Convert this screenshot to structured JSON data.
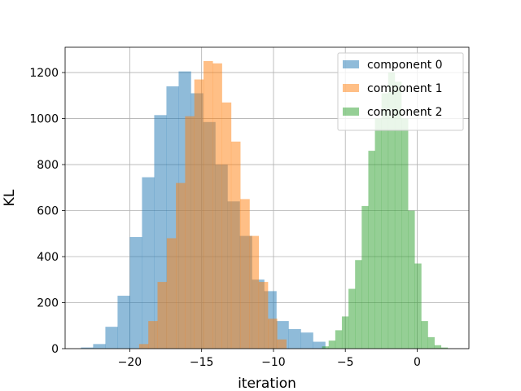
{
  "chart_data": {
    "type": "bar",
    "subtype": "histogram",
    "xlabel": "iteration",
    "ylabel": "KL",
    "xlim": [
      -24.5,
      3.6
    ],
    "ylim": [
      0,
      1310
    ],
    "xticks": [
      -20,
      -15,
      -10,
      -5,
      0
    ],
    "yticks": [
      0,
      200,
      400,
      600,
      800,
      1000,
      1200
    ],
    "grid": true,
    "legend_position": "top-right",
    "series": [
      {
        "name": "component 0",
        "color": "#1f77b4",
        "opacity": 0.5,
        "bin_width": 0.85,
        "bin_starts": [
          -23.4,
          -22.55,
          -21.7,
          -20.85,
          -20.0,
          -19.15,
          -18.3,
          -17.45,
          -16.6,
          -15.75,
          -14.9,
          -14.05,
          -13.2,
          -12.35,
          -11.5,
          -10.65,
          -9.8,
          -8.95,
          -8.1,
          -7.25
        ],
        "counts": [
          5,
          20,
          95,
          230,
          485,
          745,
          1015,
          1140,
          1205,
          1110,
          985,
          800,
          640,
          490,
          300,
          250,
          120,
          85,
          70,
          30
        ]
      },
      {
        "name": "component 1",
        "color": "#ff7f0e",
        "opacity": 0.5,
        "bin_width": 0.64,
        "bin_starts": [
          -19.35,
          -18.71,
          -18.07,
          -17.43,
          -16.79,
          -16.15,
          -15.51,
          -14.87,
          -14.23,
          -13.59,
          -12.95,
          -12.31,
          -11.67,
          -11.03,
          -10.39,
          -9.75
        ],
        "counts": [
          20,
          120,
          290,
          480,
          720,
          1010,
          1170,
          1250,
          1240,
          1070,
          900,
          650,
          490,
          290,
          130,
          40
        ]
      },
      {
        "name": "component 2",
        "color": "#2ca02c",
        "opacity": 0.5,
        "bin_width": 0.46,
        "bin_starts": [
          -6.62,
          -6.16,
          -5.7,
          -5.24,
          -4.78,
          -4.32,
          -3.86,
          -3.4,
          -2.94,
          -2.48,
          -2.02,
          -1.56,
          -1.1,
          -0.64,
          -0.18,
          0.28,
          0.74,
          1.2,
          1.66
        ],
        "counts": [
          10,
          35,
          80,
          140,
          260,
          385,
          620,
          860,
          1000,
          1110,
          1200,
          1160,
          1000,
          600,
          370,
          120,
          50,
          15,
          5
        ]
      }
    ]
  }
}
